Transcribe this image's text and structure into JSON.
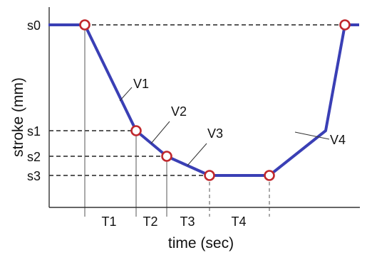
{
  "chart_data": {
    "type": "line",
    "title": "",
    "xlabel": "time (sec)",
    "ylabel": "stroke (mm)",
    "y_tick_labels": [
      "s0",
      "s1",
      "s2",
      "s3"
    ],
    "x_interval_labels": [
      "T1",
      "T2",
      "T3",
      "T4"
    ],
    "velocity_labels": [
      "V1",
      "V2",
      "V3",
      "V4"
    ],
    "series": [
      {
        "values": [
          {
            "x": 0,
            "y": "s0"
          },
          {
            "x": 1,
            "y": "s0"
          },
          {
            "x": 2,
            "y": "s1"
          },
          {
            "x": 3,
            "y": "s2"
          },
          {
            "x": 4,
            "y": "s3"
          },
          {
            "x": 5,
            "y": "s3"
          },
          {
            "x": 6,
            "y": "s1"
          },
          {
            "x": 7,
            "y": "s0"
          },
          {
            "x": 8,
            "y": "s0"
          }
        ]
      }
    ],
    "markers_on_points": [
      1,
      2,
      3,
      4,
      5,
      7
    ],
    "grid": false,
    "colors": {
      "line": "#3a3fb5",
      "marker_stroke": "#c0282d",
      "marker_fill": "#ffffff",
      "guide": "#222222",
      "axis": "#333333"
    }
  }
}
